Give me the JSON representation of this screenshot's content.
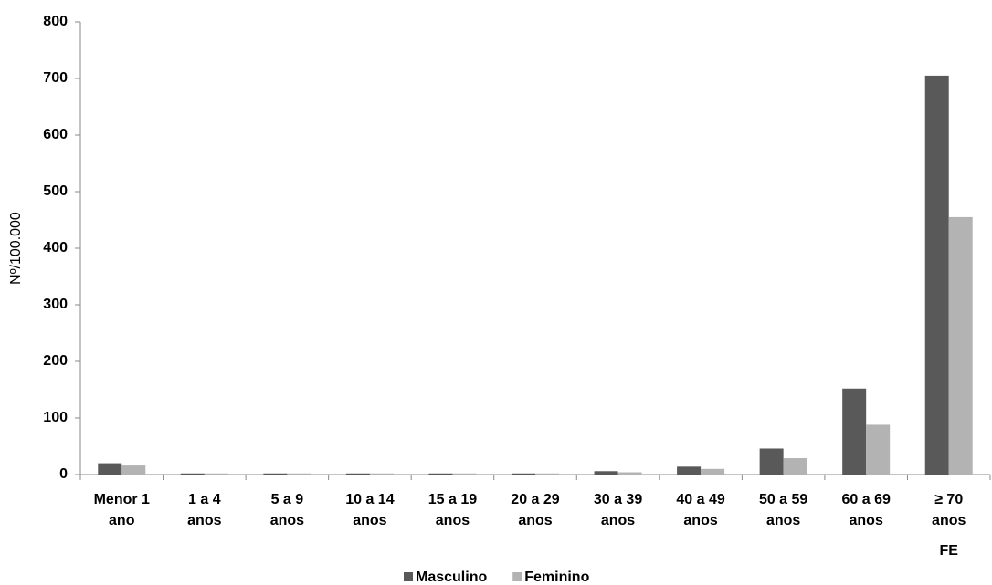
{
  "chart_data": {
    "type": "bar",
    "y_label": "Nº/100.000",
    "categories": [
      [
        "Menor 1",
        "ano"
      ],
      [
        "1 a 4",
        "anos"
      ],
      [
        "5 a 9",
        "anos"
      ],
      [
        "10 a 14",
        "anos"
      ],
      [
        "15 a 19",
        "anos"
      ],
      [
        "20 a 29",
        "anos"
      ],
      [
        "30 a 39",
        "anos"
      ],
      [
        "40 a 49",
        "anos"
      ],
      [
        "50 a 59",
        "anos"
      ],
      [
        "60 a 69",
        "anos"
      ],
      [
        "≥ 70",
        "anos"
      ]
    ],
    "annotation": "FE",
    "series": [
      {
        "name": "Masculino",
        "color": "#595959",
        "values": [
          20,
          2,
          2,
          2,
          2,
          2,
          6,
          14,
          46,
          152,
          705
        ]
      },
      {
        "name": "Feminino",
        "color": "#b3b3b3",
        "values": [
          16,
          2,
          2,
          2,
          2,
          2,
          4,
          10,
          29,
          88,
          455
        ]
      }
    ],
    "ylim": [
      0,
      800
    ],
    "yticks": [
      0,
      100,
      200,
      300,
      400,
      500,
      600,
      700,
      800
    ],
    "grid": false
  }
}
